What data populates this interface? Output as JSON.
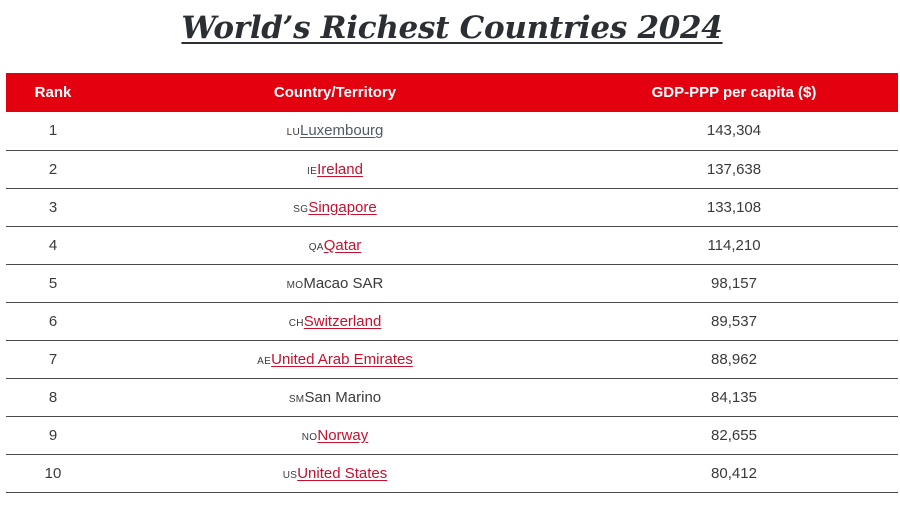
{
  "title": "World’s Richest Countries 2024",
  "colors": {
    "header_bg": "#e3000f",
    "link": "#c8102e",
    "visited_link": "#4f5a68",
    "text": "#3a3a3a"
  },
  "table": {
    "headers": [
      "Rank",
      "Country/Territory",
      "GDP-PPP per capita ($)"
    ],
    "rows": [
      {
        "rank": "1",
        "code": "LU",
        "country": "Luxembourg",
        "gdp": "143,304"
      },
      {
        "rank": "2",
        "code": "IE",
        "country": "Ireland",
        "gdp": "137,638"
      },
      {
        "rank": "3",
        "code": "SG",
        "country": "Singapore",
        "gdp": "133,108"
      },
      {
        "rank": "4",
        "code": "QA",
        "country": "Qatar",
        "gdp": "114,210"
      },
      {
        "rank": "5",
        "code": "MO",
        "country": "Macao SAR",
        "gdp": "98,157"
      },
      {
        "rank": "6",
        "code": "CH",
        "country": "Switzerland",
        "gdp": "89,537"
      },
      {
        "rank": "7",
        "code": "AE",
        "country": "United Arab Emirates",
        "gdp": "88,962"
      },
      {
        "rank": "8",
        "code": "SM",
        "country": "San Marino",
        "gdp": "84,135"
      },
      {
        "rank": "9",
        "code": "NO",
        "country": "Norway",
        "gdp": "82,655"
      },
      {
        "rank": "10",
        "code": "US",
        "country": "United States",
        "gdp": "80,412"
      }
    ]
  }
}
